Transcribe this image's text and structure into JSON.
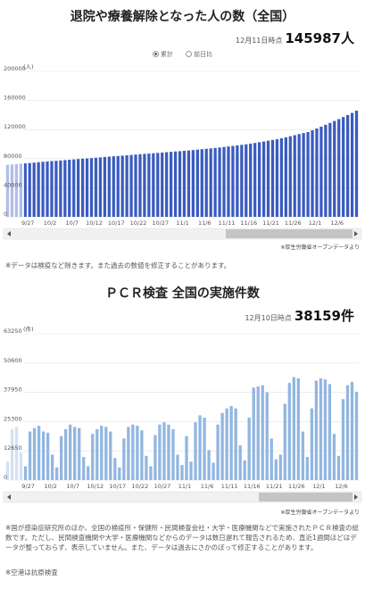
{
  "chart_data": [
    {
      "type": "bar",
      "title": "退院や療養解除となった人の数（全国）",
      "date_label": "12月11日時点",
      "headline": "145987人",
      "options": [
        "累計",
        "前日比"
      ],
      "y_unit": "(人)",
      "source": "※厚生労働省オープンデータより",
      "note": "※データは検疫など除きます。また過去の数値を修正することがあります。",
      "color": "#3a5bbf",
      "categories": [
        null,
        null,
        null,
        null,
        "9/27",
        null,
        null,
        null,
        null,
        "10/2",
        null,
        null,
        null,
        null,
        "10/7",
        null,
        null,
        null,
        null,
        "10/12",
        null,
        null,
        null,
        null,
        "10/17",
        null,
        null,
        null,
        null,
        "10/22",
        null,
        null,
        null,
        null,
        "10/27",
        null,
        null,
        null,
        null,
        "11/1",
        null,
        null,
        null,
        null,
        "11/6",
        null,
        null,
        null,
        null,
        "11/11",
        null,
        null,
        null,
        null,
        "11/16",
        null,
        null,
        null,
        null,
        "11/21",
        null,
        null,
        null,
        null,
        "11/26",
        null,
        null,
        null,
        null,
        "12/1",
        null,
        null,
        null,
        null,
        "12/6",
        null,
        null,
        null,
        null,
        null
      ],
      "values": [
        71500,
        72000,
        72600,
        73100,
        73600,
        74000,
        74500,
        75100,
        75700,
        76200,
        76700,
        77100,
        77500,
        78000,
        78500,
        79000,
        79500,
        80000,
        80400,
        80800,
        81300,
        81800,
        82300,
        82800,
        83300,
        83700,
        84100,
        84600,
        85100,
        85600,
        86100,
        86600,
        87000,
        87400,
        87900,
        88400,
        88900,
        89400,
        89900,
        90300,
        90800,
        91300,
        91800,
        92400,
        93000,
        93600,
        94100,
        94700,
        95400,
        96100,
        96800,
        97500,
        98300,
        99000,
        99800,
        100700,
        101600,
        102600,
        103600,
        104700,
        105700,
        106700,
        108000,
        109400,
        110800,
        112300,
        113800,
        115200,
        116600,
        119000,
        121500,
        124000,
        126600,
        129200,
        131800,
        134400,
        137200,
        140000,
        142900,
        145987
      ],
      "ylim": [
        0,
        200000
      ],
      "yticks": [
        0,
        40000,
        80000,
        120000,
        160000,
        200000
      ],
      "grid": true
    },
    {
      "type": "bar",
      "title": "ＰＣＲ検査 全国の実施件数",
      "date_label": "12月10日時点",
      "headline": "38159件",
      "y_unit": "(件)",
      "source": "※厚生労働省オープンデータより",
      "note": "※国が感染症研究所のほか、全国の検疫所・保健所・民間検査会社・大学・医療機関などで実施されたＰＣＲ検査の総数です。ただし、民間検査機関や大学・医療機関などからのデータは数日遅れて報告されるため、直近1週間ほどはデータが整っておらず、表示していません。また、データは過去にさかのぼって修正することがあります。",
      "note2": "※空港は抗原検査",
      "color": "#92b6e0",
      "categories": [
        null,
        null,
        null,
        null,
        "9/27",
        null,
        null,
        null,
        null,
        "10/2",
        null,
        null,
        null,
        null,
        "10/7",
        null,
        null,
        null,
        null,
        "10/12",
        null,
        null,
        null,
        null,
        "10/17",
        null,
        null,
        null,
        null,
        "10/22",
        null,
        null,
        null,
        null,
        "10/27",
        null,
        null,
        null,
        null,
        "11/1",
        null,
        null,
        null,
        null,
        "11/6",
        null,
        null,
        null,
        null,
        "11/11",
        null,
        null,
        null,
        null,
        "11/16",
        null,
        null,
        null,
        null,
        "11/21",
        null,
        null,
        null,
        null,
        "11/26",
        null,
        null,
        null,
        null,
        "12/1",
        null,
        null,
        null,
        null,
        "12/6",
        null,
        null,
        null,
        null
      ],
      "values": [
        8000,
        22000,
        23000,
        12000,
        6000,
        21000,
        22500,
        23500,
        21000,
        20500,
        11000,
        5500,
        19000,
        22000,
        24000,
        23000,
        22500,
        10000,
        6000,
        20000,
        22000,
        23500,
        23000,
        21000,
        9500,
        5500,
        18000,
        23000,
        24000,
        23500,
        21500,
        10500,
        6000,
        19500,
        24000,
        25000,
        24000,
        22000,
        11000,
        6500,
        19000,
        8000,
        25000,
        28000,
        27000,
        13000,
        7500,
        24000,
        29000,
        31000,
        32000,
        31000,
        15000,
        8500,
        27000,
        40000,
        40500,
        41000,
        38000,
        18000,
        9000,
        11000,
        33000,
        42000,
        44500,
        44000,
        21000,
        10000,
        31000,
        43000,
        44000,
        43500,
        41500,
        20000,
        10500,
        35000,
        41000,
        42500,
        38159
      ],
      "ylim": [
        0,
        63250
      ],
      "yticks": [
        0,
        12650,
        25300,
        37950,
        50600,
        63250
      ],
      "grid": true
    }
  ]
}
